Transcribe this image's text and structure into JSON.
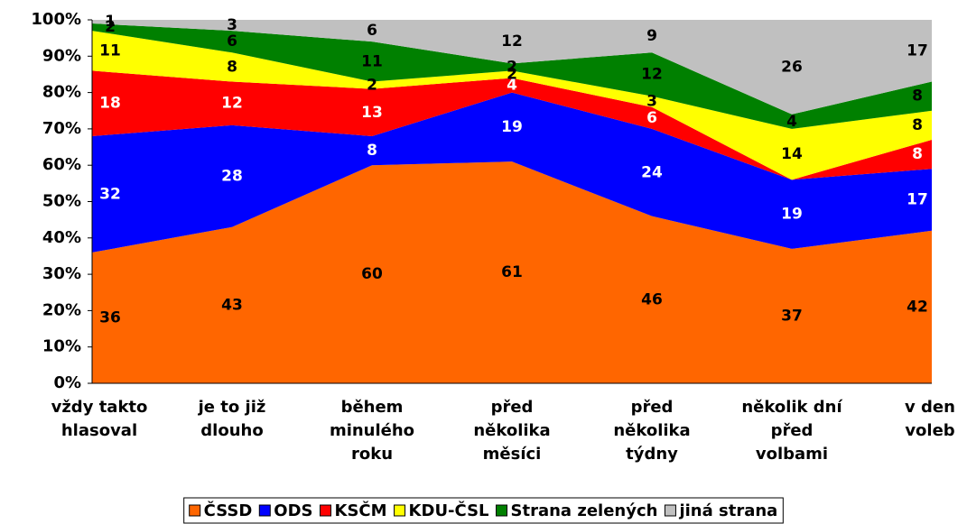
{
  "chart_data": {
    "type": "stacked_area",
    "categories": [
      [
        "vždy takto",
        "hlasoval"
      ],
      [
        "je to již",
        "dlouho"
      ],
      [
        "během",
        "minulého",
        "roku"
      ],
      [
        "před",
        "několika",
        "měsíci"
      ],
      [
        "před",
        "několika",
        "týdny"
      ],
      [
        "několik dní",
        "před",
        "volbami"
      ],
      [
        "v den",
        "voleb"
      ]
    ],
    "series": [
      {
        "name": "ČSSD",
        "color": "#ff6600",
        "label_color": "#000000",
        "values": [
          36,
          43,
          60,
          61,
          46,
          37,
          42
        ]
      },
      {
        "name": "ODS",
        "color": "#0000ff",
        "label_color": "#ffffff",
        "values": [
          32,
          28,
          8,
          19,
          24,
          19,
          17
        ]
      },
      {
        "name": "KSČM",
        "color": "#ff0000",
        "label_color": "#ffffff",
        "values": [
          18,
          12,
          13,
          4,
          6,
          0,
          8
        ]
      },
      {
        "name": "KDU-ČSL",
        "color": "#ffff00",
        "label_color": "#000000",
        "values": [
          11,
          8,
          2,
          2,
          3,
          14,
          8
        ]
      },
      {
        "name": "Strana zelených",
        "color": "#008000",
        "label_color": "#000000",
        "values": [
          2,
          6,
          11,
          2,
          12,
          4,
          8
        ]
      },
      {
        "name": "jiná strana",
        "color": "#c0c0c0",
        "label_color": "#000000",
        "values": [
          1,
          3,
          6,
          12,
          9,
          26,
          17
        ]
      }
    ],
    "ylim": [
      0,
      100
    ],
    "yticks": [
      {
        "value": 0,
        "label": "0%"
      },
      {
        "value": 10,
        "label": "10%"
      },
      {
        "value": 20,
        "label": "20%"
      },
      {
        "value": 30,
        "label": "30%"
      },
      {
        "value": 40,
        "label": "40%"
      },
      {
        "value": 50,
        "label": "50%"
      },
      {
        "value": 60,
        "label": "60%"
      },
      {
        "value": 70,
        "label": "70%"
      },
      {
        "value": 80,
        "label": "80%"
      },
      {
        "value": 90,
        "label": "90%"
      },
      {
        "value": 100,
        "label": "100%"
      }
    ],
    "legend": "bottom"
  }
}
